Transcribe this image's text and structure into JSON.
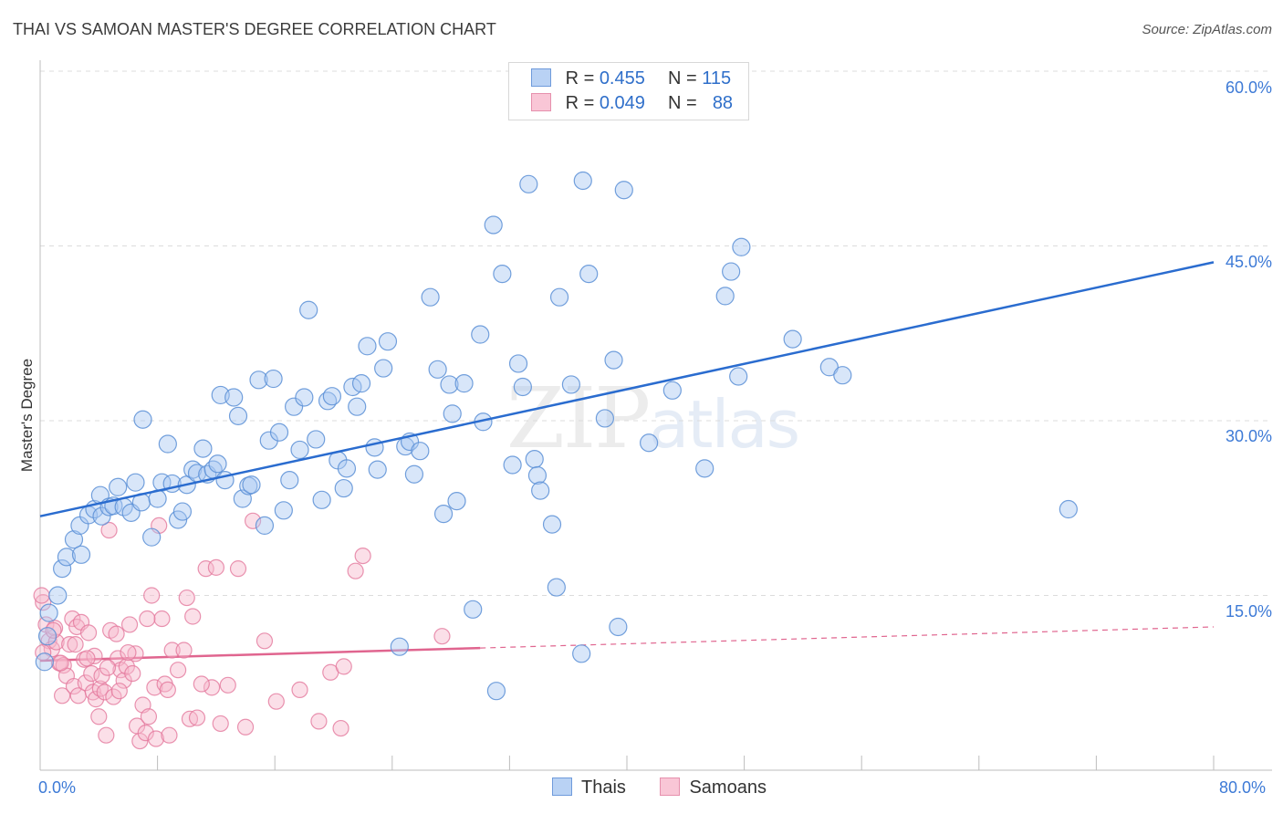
{
  "header": {
    "title": "THAI VS SAMOAN MASTER'S DEGREE CORRELATION CHART",
    "source": "Source: ZipAtlas.com"
  },
  "legend": {
    "row1": {
      "r_label": "R =",
      "r_value": "0.455",
      "n_label": "N =",
      "n_value": "115"
    },
    "row2": {
      "r_label": "R =",
      "r_value": "0.049",
      "n_label": "N =",
      "n_value": "88"
    }
  },
  "watermark": {
    "zip": "ZIP",
    "atlas": "atlas"
  },
  "colors": {
    "thais_fill": "#a9c8f2",
    "thais_stroke": "#5b8fd6",
    "thais_line": "#2a6ccf",
    "samoans_fill": "#f7b9cc",
    "samoans_stroke": "#e3789c",
    "samoans_line": "#e0658f"
  },
  "chart_data": {
    "type": "scatter",
    "title": "THAI VS SAMOAN MASTER'S DEGREE CORRELATION CHART",
    "xlabel": "",
    "ylabel": "Master's Degree",
    "xlim": [
      0,
      80
    ],
    "ylim": [
      0,
      60
    ],
    "x_tick_labels": [
      "0.0%",
      "80.0%"
    ],
    "y_tick_labels": [
      "15.0%",
      "30.0%",
      "45.0%",
      "60.0%"
    ],
    "y_ticks": [
      15,
      30,
      45,
      60
    ],
    "grid": true,
    "legend_position": "top-center",
    "series": [
      {
        "name": "Thais",
        "R": 0.455,
        "N": 115,
        "trend": {
          "x": [
            0,
            80
          ],
          "y": [
            21.8,
            43.6
          ],
          "style": "solid"
        },
        "points": [
          [
            0.3,
            9.3
          ],
          [
            0.5,
            11.5
          ],
          [
            0.6,
            13.5
          ],
          [
            1.2,
            15.0
          ],
          [
            1.5,
            17.3
          ],
          [
            1.8,
            18.3
          ],
          [
            2.3,
            19.8
          ],
          [
            2.8,
            18.5
          ],
          [
            2.7,
            21.0
          ],
          [
            3.3,
            21.9
          ],
          [
            3.7,
            22.4
          ],
          [
            4.1,
            23.6
          ],
          [
            4.2,
            21.8
          ],
          [
            4.7,
            22.6
          ],
          [
            5.0,
            22.7
          ],
          [
            5.3,
            24.3
          ],
          [
            5.7,
            22.6
          ],
          [
            6.2,
            22.1
          ],
          [
            6.5,
            24.7
          ],
          [
            6.9,
            23.0
          ],
          [
            7.0,
            30.1
          ],
          [
            7.6,
            20.0
          ],
          [
            8.0,
            23.3
          ],
          [
            8.3,
            24.7
          ],
          [
            8.7,
            28.0
          ],
          [
            9.0,
            24.6
          ],
          [
            9.4,
            21.5
          ],
          [
            9.7,
            22.2
          ],
          [
            10.0,
            24.5
          ],
          [
            10.4,
            25.8
          ],
          [
            10.7,
            25.5
          ],
          [
            11.1,
            27.6
          ],
          [
            11.4,
            25.4
          ],
          [
            11.8,
            25.8
          ],
          [
            12.1,
            26.3
          ],
          [
            12.3,
            32.2
          ],
          [
            12.6,
            24.9
          ],
          [
            13.2,
            32.0
          ],
          [
            13.5,
            30.4
          ],
          [
            13.8,
            23.3
          ],
          [
            14.2,
            24.4
          ],
          [
            14.4,
            24.5
          ],
          [
            14.9,
            33.5
          ],
          [
            15.3,
            21.0
          ],
          [
            15.6,
            28.3
          ],
          [
            15.9,
            33.6
          ],
          [
            16.3,
            29.0
          ],
          [
            16.6,
            22.3
          ],
          [
            17.0,
            24.9
          ],
          [
            17.3,
            31.2
          ],
          [
            17.7,
            27.5
          ],
          [
            18.0,
            32.0
          ],
          [
            18.3,
            39.5
          ],
          [
            18.8,
            28.4
          ],
          [
            19.2,
            23.2
          ],
          [
            19.6,
            31.7
          ],
          [
            19.9,
            32.1
          ],
          [
            20.3,
            26.6
          ],
          [
            20.7,
            24.2
          ],
          [
            20.9,
            25.9
          ],
          [
            21.3,
            32.9
          ],
          [
            21.6,
            31.2
          ],
          [
            21.9,
            33.2
          ],
          [
            22.3,
            36.4
          ],
          [
            22.8,
            27.7
          ],
          [
            23.0,
            25.8
          ],
          [
            23.4,
            34.5
          ],
          [
            23.7,
            36.8
          ],
          [
            24.5,
            10.6
          ],
          [
            24.9,
            27.8
          ],
          [
            25.2,
            28.2
          ],
          [
            25.5,
            25.4
          ],
          [
            25.9,
            27.4
          ],
          [
            26.6,
            40.6
          ],
          [
            27.1,
            34.4
          ],
          [
            27.5,
            22.0
          ],
          [
            27.9,
            33.1
          ],
          [
            28.1,
            30.6
          ],
          [
            28.4,
            23.1
          ],
          [
            28.9,
            33.2
          ],
          [
            29.5,
            13.8
          ],
          [
            30.0,
            37.4
          ],
          [
            30.2,
            29.9
          ],
          [
            30.9,
            46.8
          ],
          [
            31.1,
            6.8
          ],
          [
            31.5,
            42.6
          ],
          [
            32.2,
            26.2
          ],
          [
            32.6,
            34.9
          ],
          [
            32.9,
            32.9
          ],
          [
            33.3,
            50.3
          ],
          [
            33.7,
            26.7
          ],
          [
            33.9,
            25.3
          ],
          [
            34.1,
            24.0
          ],
          [
            34.9,
            21.1
          ],
          [
            35.2,
            15.7
          ],
          [
            35.4,
            40.6
          ],
          [
            36.2,
            33.1
          ],
          [
            36.9,
            10.0
          ],
          [
            37.0,
            50.6
          ],
          [
            37.4,
            42.6
          ],
          [
            38.5,
            30.2
          ],
          [
            39.1,
            35.2
          ],
          [
            39.4,
            12.3
          ],
          [
            39.8,
            49.8
          ],
          [
            41.5,
            28.1
          ],
          [
            43.1,
            32.6
          ],
          [
            45.3,
            25.9
          ],
          [
            46.7,
            40.7
          ],
          [
            47.1,
            42.8
          ],
          [
            47.6,
            33.8
          ],
          [
            47.8,
            44.9
          ],
          [
            51.3,
            37.0
          ],
          [
            53.8,
            34.6
          ],
          [
            54.7,
            33.9
          ],
          [
            70.1,
            22.4
          ]
        ]
      },
      {
        "name": "Samoans",
        "R": 0.049,
        "N": 88,
        "trend": {
          "x": [
            0,
            80
          ],
          "y": [
            9.4,
            12.3
          ],
          "solid_until_x": 30
        },
        "points": [
          [
            0.2,
            14.4
          ],
          [
            0.4,
            12.5
          ],
          [
            0.6,
            11.1
          ],
          [
            0.8,
            10.4
          ],
          [
            1.0,
            12.2
          ],
          [
            1.1,
            11.0
          ],
          [
            1.3,
            9.2
          ],
          [
            1.5,
            6.4
          ],
          [
            1.6,
            9.0
          ],
          [
            1.8,
            8.1
          ],
          [
            2.0,
            10.8
          ],
          [
            2.2,
            13.0
          ],
          [
            2.3,
            7.2
          ],
          [
            2.5,
            12.3
          ],
          [
            2.6,
            6.4
          ],
          [
            2.8,
            12.7
          ],
          [
            3.0,
            9.5
          ],
          [
            3.1,
            7.5
          ],
          [
            3.3,
            11.8
          ],
          [
            3.5,
            8.3
          ],
          [
            3.6,
            6.7
          ],
          [
            3.7,
            9.8
          ],
          [
            3.8,
            6.1
          ],
          [
            4.0,
            4.6
          ],
          [
            4.1,
            7.0
          ],
          [
            4.2,
            8.1
          ],
          [
            4.4,
            6.7
          ],
          [
            4.5,
            3.0
          ],
          [
            4.7,
            20.6
          ],
          [
            4.8,
            12.0
          ],
          [
            5.0,
            6.3
          ],
          [
            5.2,
            11.7
          ],
          [
            5.3,
            9.6
          ],
          [
            5.5,
            8.6
          ],
          [
            5.7,
            7.7
          ],
          [
            5.9,
            8.9
          ],
          [
            6.1,
            12.5
          ],
          [
            6.3,
            8.3
          ],
          [
            6.5,
            10.0
          ],
          [
            6.6,
            3.8
          ],
          [
            6.8,
            2.5
          ],
          [
            7.0,
            5.6
          ],
          [
            7.2,
            3.2
          ],
          [
            7.4,
            4.6
          ],
          [
            7.6,
            15.0
          ],
          [
            7.8,
            7.1
          ],
          [
            7.9,
            2.7
          ],
          [
            8.1,
            21.0
          ],
          [
            8.3,
            13.0
          ],
          [
            8.5,
            7.4
          ],
          [
            8.7,
            6.9
          ],
          [
            9.0,
            10.3
          ],
          [
            9.4,
            8.6
          ],
          [
            10.0,
            14.8
          ],
          [
            10.2,
            4.4
          ],
          [
            10.4,
            13.2
          ],
          [
            10.7,
            4.5
          ],
          [
            11.3,
            17.3
          ],
          [
            11.7,
            7.1
          ],
          [
            12.0,
            17.4
          ],
          [
            12.8,
            7.3
          ],
          [
            13.5,
            17.3
          ],
          [
            14.0,
            3.7
          ],
          [
            14.5,
            21.4
          ],
          [
            15.3,
            11.1
          ],
          [
            17.7,
            6.9
          ],
          [
            19.0,
            4.2
          ],
          [
            19.8,
            8.4
          ],
          [
            20.5,
            3.6
          ],
          [
            21.5,
            17.1
          ],
          [
            22.0,
            18.4
          ],
          [
            27.4,
            11.5
          ],
          [
            0.1,
            15.0
          ],
          [
            0.2,
            10.1
          ],
          [
            0.9,
            12.0
          ],
          [
            1.4,
            9.2
          ],
          [
            2.4,
            10.8
          ],
          [
            3.2,
            9.6
          ],
          [
            4.6,
            8.8
          ],
          [
            5.4,
            6.8
          ],
          [
            6.0,
            10.1
          ],
          [
            8.8,
            3.0
          ],
          [
            9.8,
            10.3
          ],
          [
            11.0,
            7.4
          ],
          [
            12.3,
            4.0
          ],
          [
            16.1,
            5.9
          ],
          [
            20.7,
            8.9
          ],
          [
            7.3,
            13.0
          ]
        ]
      }
    ]
  }
}
